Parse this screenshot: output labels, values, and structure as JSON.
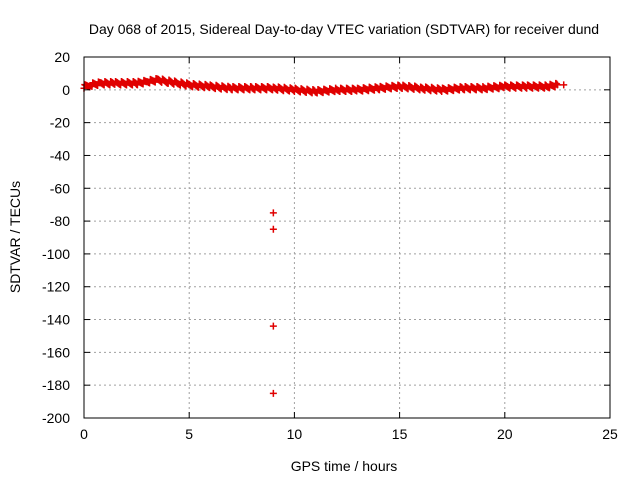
{
  "chart_data": {
    "type": "scatter",
    "title": "Day 068 of 2015, Sidereal Day-to-day VTEC variation (SDTVAR) for receiver dund",
    "xlabel": "GPS time / hours",
    "ylabel": "SDTVAR / TECUs",
    "xlim": [
      0,
      25
    ],
    "ylim": [
      -200,
      20
    ],
    "x_ticks": [
      0,
      5,
      10,
      15,
      20,
      25
    ],
    "y_ticks": [
      20,
      0,
      -20,
      -40,
      -60,
      -80,
      -100,
      -120,
      -140,
      -160,
      -180,
      -200
    ],
    "grid": true,
    "marker": "+",
    "marker_color": "#e00000",
    "series": [
      {
        "name": "SDTVAR",
        "trend": [
          [
            0.0,
            2
          ],
          [
            0.3,
            3
          ],
          [
            0.8,
            4
          ],
          [
            1.5,
            4
          ],
          [
            2.5,
            4
          ],
          [
            3.0,
            5
          ],
          [
            3.5,
            6
          ],
          [
            4.0,
            5
          ],
          [
            4.5,
            4
          ],
          [
            5.0,
            3
          ],
          [
            6.0,
            2
          ],
          [
            7.0,
            1
          ],
          [
            8.0,
            1
          ],
          [
            9.0,
            1
          ],
          [
            10.0,
            0
          ],
          [
            11.0,
            -1
          ],
          [
            12.0,
            0
          ],
          [
            13.0,
            0
          ],
          [
            14.0,
            1
          ],
          [
            15.0,
            2
          ],
          [
            16.0,
            1
          ],
          [
            17.0,
            0
          ],
          [
            18.0,
            1
          ],
          [
            19.0,
            1
          ],
          [
            20.0,
            2
          ],
          [
            21.0,
            2
          ],
          [
            22.0,
            2
          ],
          [
            22.5,
            3
          ]
        ],
        "extra_points": [
          [
            22.8,
            3
          ],
          [
            9.0,
            -75
          ],
          [
            9.0,
            -85
          ],
          [
            9.0,
            -144
          ],
          [
            9.0,
            -185
          ]
        ]
      }
    ]
  }
}
